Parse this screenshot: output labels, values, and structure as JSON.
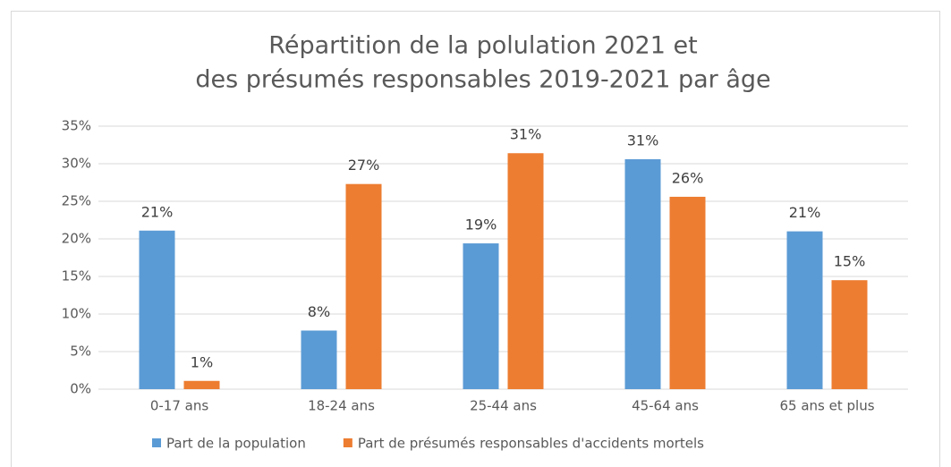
{
  "chart_data": {
    "type": "bar",
    "title": [
      "Répartition de la polulation 2021 et",
      "des présumés responsables 2019-2021 par âge"
    ],
    "categories": [
      "0-17 ans",
      "18-24 ans",
      "25-44 ans",
      "45-64 ans",
      "65 ans et plus"
    ],
    "series": [
      {
        "name": "Part de la population",
        "color": "#5b9bd5",
        "values": [
          21.1,
          7.8,
          19.4,
          30.6,
          21.0
        ],
        "value_labels": [
          "21%",
          "8%",
          "19%",
          "31%",
          "21%"
        ]
      },
      {
        "name": "Part de présumés responsables d'accidents mortels",
        "color": "#ed7d31",
        "values": [
          1.1,
          27.3,
          31.4,
          25.6,
          14.5
        ],
        "value_labels": [
          "1%",
          "27%",
          "31%",
          "26%",
          "15%"
        ]
      }
    ],
    "ylim": [
      0,
      35
    ],
    "yticks": [
      {
        "value": 0,
        "label": "0%"
      },
      {
        "value": 5,
        "label": "5%"
      },
      {
        "value": 10,
        "label": "10%"
      },
      {
        "value": 15,
        "label": "15%"
      },
      {
        "value": 20,
        "label": "20%"
      },
      {
        "value": 25,
        "label": "25%"
      },
      {
        "value": 30,
        "label": "30%"
      },
      {
        "value": 35,
        "label": "35%"
      }
    ],
    "grid": true,
    "legend": "bottom"
  }
}
